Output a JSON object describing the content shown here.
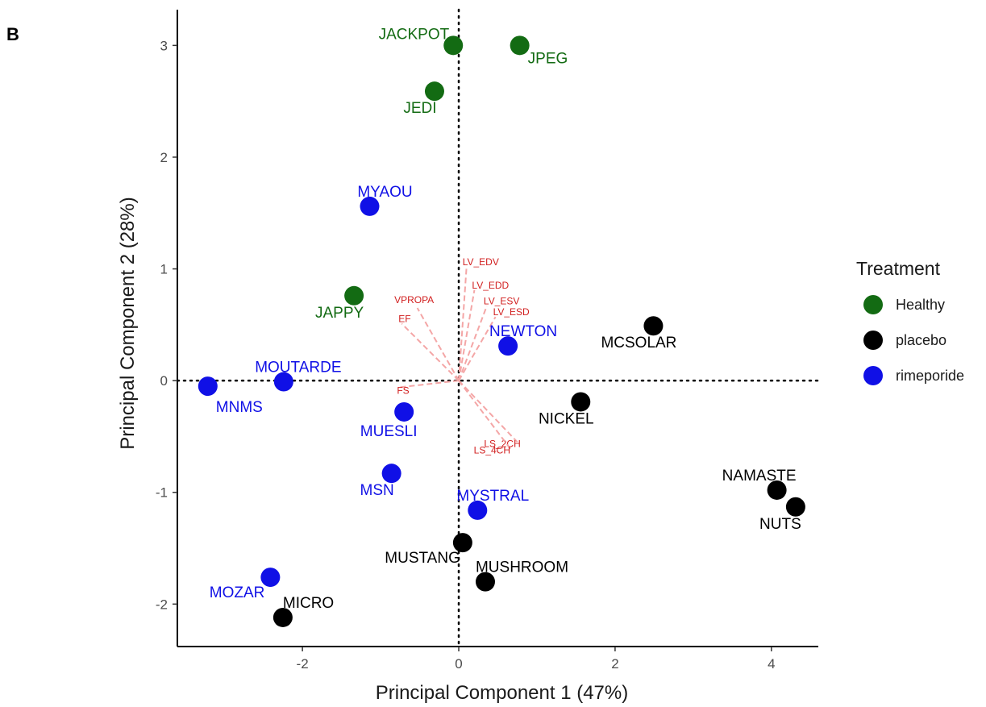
{
  "panel_label": "B",
  "chart_data": {
    "type": "scatter",
    "xlabel": "Principal Component 1 (47%)",
    "ylabel": "Principal Component 2 (28%)",
    "xlim": [
      -3.6,
      4.6
    ],
    "ylim": [
      -2.38,
      3.32
    ],
    "x_ticks": [
      -2,
      0,
      2,
      4
    ],
    "y_ticks": [
      -2,
      -1,
      0,
      1,
      2,
      3
    ],
    "reference_lines": {
      "x": 0,
      "y": 0
    },
    "legend": {
      "title": "Treatment",
      "placement": "right",
      "entries": [
        {
          "label": "Healthy",
          "color": "#136b13"
        },
        {
          "label": "placebo",
          "color": "#000000"
        },
        {
          "label": "rimeporide",
          "color": "#1010e6"
        }
      ]
    },
    "points": [
      {
        "name": "JACKPOT",
        "group": "Healthy",
        "x": -0.07,
        "y": 3.0,
        "label_anchor": "end",
        "label_dx": -5,
        "label_dy": -8
      },
      {
        "name": "JPEG",
        "group": "Healthy",
        "x": 0.78,
        "y": 3.0,
        "label_anchor": "start",
        "label_dx": 10,
        "label_dy": 22
      },
      {
        "name": "JEDI",
        "group": "Healthy",
        "x": -0.31,
        "y": 2.59,
        "label_anchor": "middle",
        "label_dx": -18,
        "label_dy": 27
      },
      {
        "name": "JAPPY",
        "group": "Healthy",
        "x": -1.34,
        "y": 0.76,
        "label_anchor": "middle",
        "label_dx": -18,
        "label_dy": 27
      },
      {
        "name": "MYAOU",
        "group": "rimeporide",
        "x": -1.14,
        "y": 1.56,
        "label_anchor": "middle",
        "label_dx": 19,
        "label_dy": -12
      },
      {
        "name": "NEWTON",
        "group": "rimeporide",
        "x": 0.63,
        "y": 0.31,
        "label_anchor": "middle",
        "label_dx": 19,
        "label_dy": -12
      },
      {
        "name": "MOUTARDE",
        "group": "rimeporide",
        "x": -2.24,
        "y": -0.01,
        "label_anchor": "middle",
        "label_dx": 18,
        "label_dy": -12
      },
      {
        "name": "MNMS",
        "group": "rimeporide",
        "x": -3.21,
        "y": -0.05,
        "label_anchor": "start",
        "label_dx": 10,
        "label_dy": 32
      },
      {
        "name": "MUESLI",
        "group": "rimeporide",
        "x": -0.7,
        "y": -0.28,
        "label_anchor": "middle",
        "label_dx": -19,
        "label_dy": 30
      },
      {
        "name": "MSN",
        "group": "rimeporide",
        "x": -0.86,
        "y": -0.83,
        "label_anchor": "middle",
        "label_dx": -18,
        "label_dy": 27
      },
      {
        "name": "MYSTRAL",
        "group": "rimeporide",
        "x": 0.24,
        "y": -1.16,
        "label_anchor": "middle",
        "label_dx": 19,
        "label_dy": -12
      },
      {
        "name": "MOZAR",
        "group": "rimeporide",
        "x": -2.41,
        "y": -1.76,
        "label_anchor": "end",
        "label_dx": -7,
        "label_dy": 25
      },
      {
        "name": "MCSOLAR",
        "group": "placebo",
        "x": 2.49,
        "y": 0.49,
        "label_anchor": "middle",
        "label_dx": -18,
        "label_dy": 27
      },
      {
        "name": "NICKEL",
        "group": "placebo",
        "x": 1.56,
        "y": -0.19,
        "label_anchor": "middle",
        "label_dx": -18,
        "label_dy": 27
      },
      {
        "name": "NAMASTE",
        "group": "placebo",
        "x": 4.07,
        "y": -0.98,
        "label_anchor": "middle",
        "label_dx": -22,
        "label_dy": -12
      },
      {
        "name": "NUTS",
        "group": "placebo",
        "x": 4.31,
        "y": -1.13,
        "label_anchor": "middle",
        "label_dx": -19,
        "label_dy": 27
      },
      {
        "name": "MUSTANG",
        "group": "placebo",
        "x": 0.05,
        "y": -1.45,
        "label_anchor": "end",
        "label_dx": -3,
        "label_dy": 25
      },
      {
        "name": "MUSHROOM",
        "group": "placebo",
        "x": 0.34,
        "y": -1.8,
        "label_anchor": "start",
        "label_dx": -12,
        "label_dy": -12
      },
      {
        "name": "MICRO",
        "group": "placebo",
        "x": -2.25,
        "y": -2.12,
        "label_anchor": "start",
        "label_dx": 0,
        "label_dy": -12
      }
    ],
    "loadings": [
      {
        "name": "LV_EDV",
        "x": 0.1,
        "y": 1.02,
        "label_anchor": "start",
        "label_dx": -5,
        "label_dy": -2
      },
      {
        "name": "LV_EDD",
        "x": 0.2,
        "y": 0.81,
        "label_anchor": "start",
        "label_dx": -3,
        "label_dy": -2
      },
      {
        "name": "LV_ESV",
        "x": 0.36,
        "y": 0.67,
        "label_anchor": "start",
        "label_dx": -4,
        "label_dy": -2
      },
      {
        "name": "LV_ESD",
        "x": 0.47,
        "y": 0.57,
        "label_anchor": "start",
        "label_dx": -3,
        "label_dy": -2
      },
      {
        "name": "VPROPA",
        "x": -0.53,
        "y": 0.65,
        "label_anchor": "middle",
        "label_dx": -4,
        "label_dy": -6
      },
      {
        "name": "EF",
        "x": -0.73,
        "y": 0.51,
        "label_anchor": "start",
        "label_dx": -4,
        "label_dy": -2
      },
      {
        "name": "FS",
        "x": -0.76,
        "y": -0.06,
        "label_anchor": "start",
        "label_dx": -3,
        "label_dy": 8
      },
      {
        "name": "LS_2CH",
        "x": 0.75,
        "y": -0.55,
        "label_anchor": "end",
        "label_dx": 4,
        "label_dy": 6
      },
      {
        "name": "LS_4CH",
        "x": 0.66,
        "y": -0.61,
        "label_anchor": "end",
        "label_dx": 0,
        "label_dy": 6
      }
    ]
  }
}
